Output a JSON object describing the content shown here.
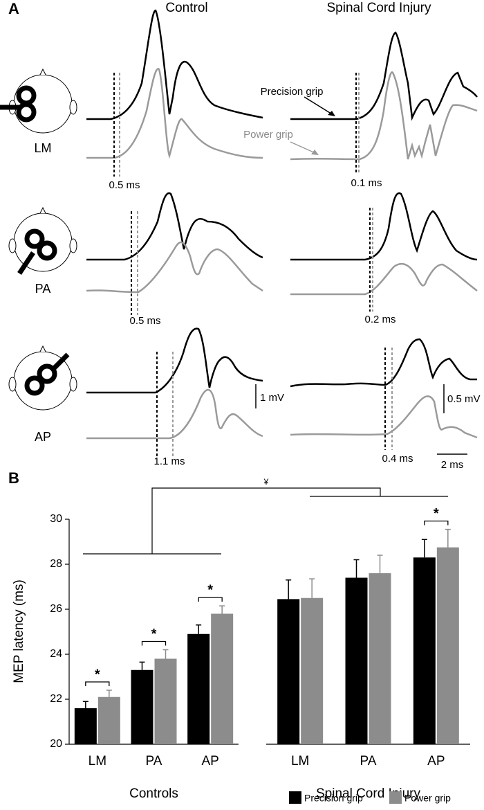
{
  "panel_a": {
    "label": "A",
    "columns": [
      "Control",
      "Spinal Cord Injury"
    ],
    "rows": [
      {
        "label": "LM",
        "control_delay": "0.5 ms",
        "sci_delay": "0.1 ms"
      },
      {
        "label": "PA",
        "control_delay": "0.5 ms",
        "sci_delay": "0.2 ms"
      },
      {
        "label": "AP",
        "control_delay": "1.1 ms",
        "sci_delay": "0.4 ms"
      }
    ],
    "trace_labels": [
      "Precision grip",
      "Power grip"
    ],
    "scale_bars": {
      "control_amplitude": "1 mV",
      "sci_amplitude": "0.5 mV",
      "time": "2 ms"
    }
  },
  "chart_data": {
    "type": "bar",
    "panel_label": "B",
    "ylabel": "MEP latency (ms)",
    "categories": [
      "LM",
      "PA",
      "AP",
      "LM",
      "PA",
      "AP"
    ],
    "groups": [
      {
        "name": "Controls",
        "size": 3
      },
      {
        "name": "Spinal Cord Injury",
        "size": 3
      }
    ],
    "series": [
      {
        "name": "Precision grip",
        "color": "#000000",
        "values": [
          21.6,
          23.3,
          24.9,
          26.45,
          27.4,
          28.3
        ],
        "errors": [
          0.3,
          0.35,
          0.4,
          0.85,
          0.8,
          0.8
        ]
      },
      {
        "name": "Power grip",
        "color": "#8c8c8c",
        "values": [
          22.1,
          23.8,
          25.8,
          26.5,
          27.6,
          28.75
        ],
        "errors": [
          0.3,
          0.4,
          0.35,
          0.85,
          0.8,
          0.8
        ]
      }
    ],
    "significance": [
      "*",
      "*",
      "*",
      null,
      null,
      "*"
    ],
    "group_annotation": "¥",
    "ylim": [
      20,
      30
    ],
    "yticks": [
      20,
      22,
      24,
      26,
      28,
      30
    ]
  }
}
